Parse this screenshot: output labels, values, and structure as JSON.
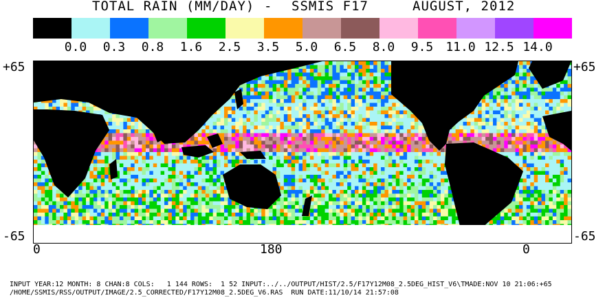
{
  "title": {
    "left": "TOTAL RAIN (MM/DAY)",
    "dash": "-",
    "sensor": "SSMIS F17",
    "date": "AUGUST, 2012"
  },
  "colorscale": {
    "colors": [
      "#000000",
      "#aaf5f5",
      "#0a73ff",
      "#a0f5a0",
      "#00d200",
      "#fafaaa",
      "#ff9600",
      "#c89696",
      "#8c5a5a",
      "#ffb9e1",
      "#ff50b4",
      "#d296ff",
      "#a046ff",
      "#ff00ff"
    ],
    "tick_labels": [
      "0.0",
      "0.3",
      "0.8",
      "1.6",
      "2.5",
      "3.5",
      "5.0",
      "6.5",
      "8.0",
      "9.5",
      "11.0",
      "12.5",
      "14.0"
    ]
  },
  "axes": {
    "lat_top_left": "+65",
    "lat_top_right": "+65",
    "lat_bottom_left": "-65",
    "lat_bottom_right": "-65",
    "lon_labels": [
      "0",
      "180",
      "0"
    ]
  },
  "footer": {
    "line1": "INPUT YEAR:12 MONTH: 8 CHAN:8 COLS:   1 144 ROWS:  1 52 INPUT:../../OUTPUT/HIST/2.5/F17Y12M08_2.5DEG_HIST_V6\\TMADE:NOV 10 21:06:+65",
    "line2": "/HOME/SSMIS/RSS/OUTPUT/IMAGE/2.5_CORRECTED/F17Y12M08_2.5DEG_V6.RAS  RUN DATE:11/10/14 21:57:08"
  }
}
